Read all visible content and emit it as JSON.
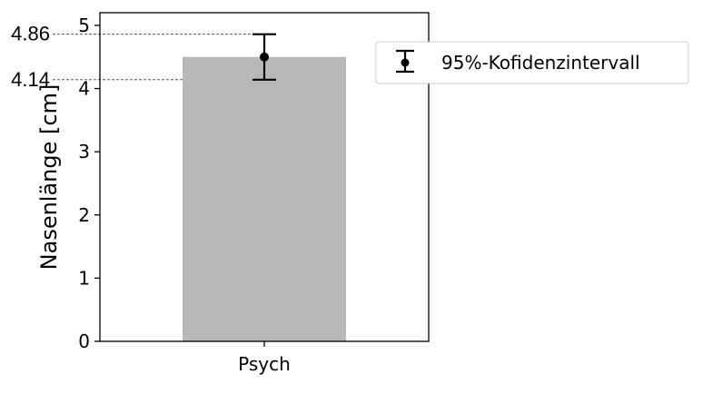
{
  "chart_data": {
    "type": "bar",
    "categories": [
      "Psych"
    ],
    "values": [
      4.5
    ],
    "error_bars": [
      {
        "lower": 4.14,
        "upper": 4.86
      }
    ],
    "mean_marker": true,
    "title": "",
    "xlabel": "",
    "ylabel": "Nasenlänge [cm]",
    "ylim": [
      0,
      5.2
    ],
    "yticks": [
      0,
      1,
      2,
      3,
      4,
      5
    ],
    "grid": false,
    "legend": {
      "placement": "right, outside plot",
      "entries": [
        "95%-Kofidenzintervall"
      ]
    },
    "annotations": [
      {
        "text": "4.86",
        "y": 4.86
      },
      {
        "text": "4.14",
        "y": 4.14
      }
    ],
    "colors": {
      "bar": "#b8b8b8",
      "errorbar": "#000000",
      "guide": "#555555"
    }
  }
}
